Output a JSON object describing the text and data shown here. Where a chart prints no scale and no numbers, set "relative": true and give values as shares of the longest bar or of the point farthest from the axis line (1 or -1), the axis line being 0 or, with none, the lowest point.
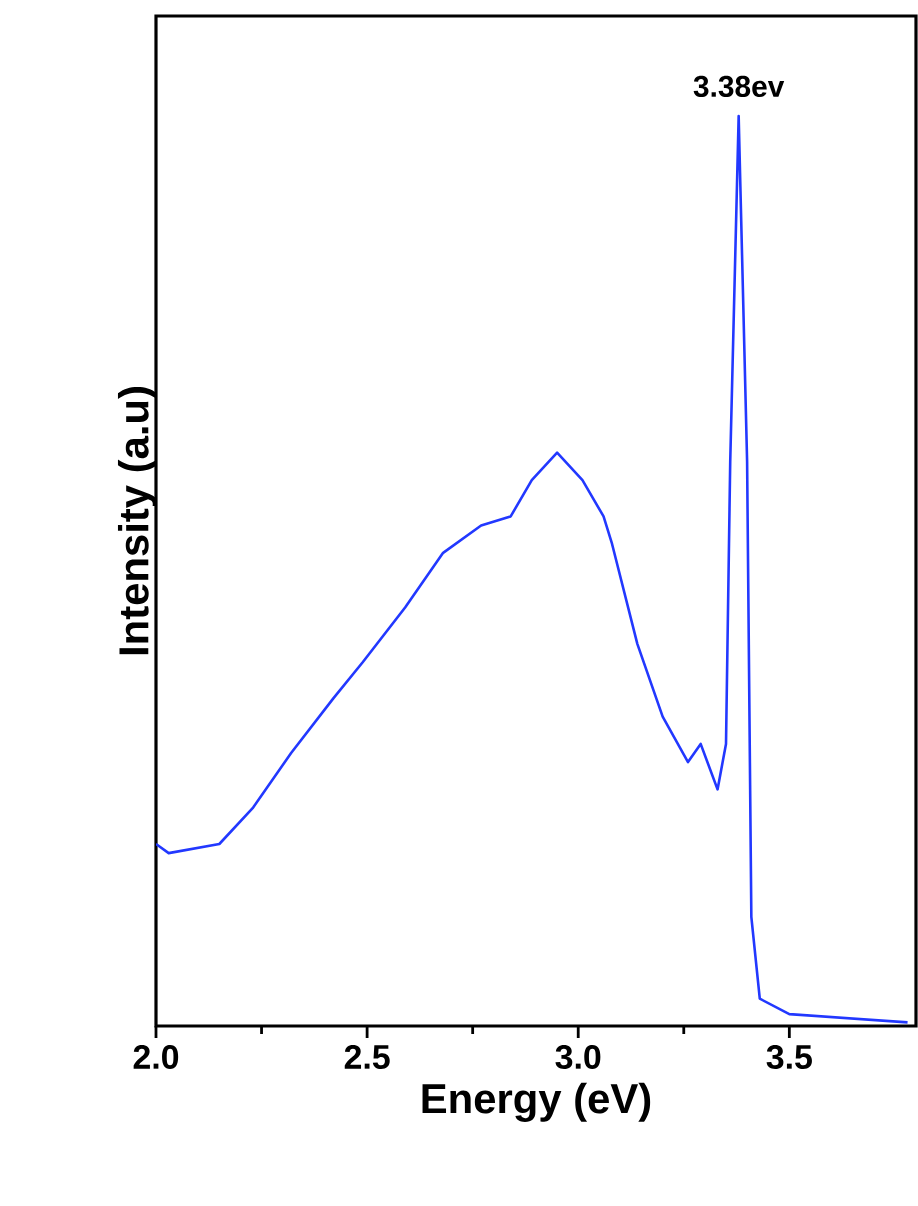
{
  "chart_data": {
    "type": "line",
    "xlabel": "Energy (eV)",
    "ylabel": "Intensity (a.u)",
    "relative": true,
    "xlim": [
      2.0,
      3.8
    ],
    "xticks": [
      {
        "value": 2.0,
        "label": "2.0"
      },
      {
        "value": 2.5,
        "label": "2.5"
      },
      {
        "value": 3.0,
        "label": "3.0"
      },
      {
        "value": 3.5,
        "label": "3.5"
      }
    ],
    "annotations": [
      {
        "text": "3.38ev",
        "x": 3.38,
        "y": 1.0
      }
    ],
    "series": [
      {
        "color": "#2238ff",
        "x": [
          2.0,
          2.03,
          2.15,
          2.23,
          2.32,
          2.42,
          2.49,
          2.59,
          2.68,
          2.77,
          2.84,
          2.89,
          2.95,
          3.01,
          3.06,
          3.08,
          3.14,
          3.2,
          3.26,
          3.29,
          3.33,
          3.35,
          3.36,
          3.38,
          3.4,
          3.41,
          3.43,
          3.5,
          3.78
        ],
        "values": [
          0.2,
          0.19,
          0.2,
          0.24,
          0.3,
          0.36,
          0.4,
          0.46,
          0.52,
          0.55,
          0.56,
          0.6,
          0.63,
          0.6,
          0.56,
          0.53,
          0.42,
          0.34,
          0.29,
          0.31,
          0.26,
          0.31,
          0.62,
          1.0,
          0.62,
          0.12,
          0.03,
          0.013,
          0.004
        ]
      }
    ]
  }
}
